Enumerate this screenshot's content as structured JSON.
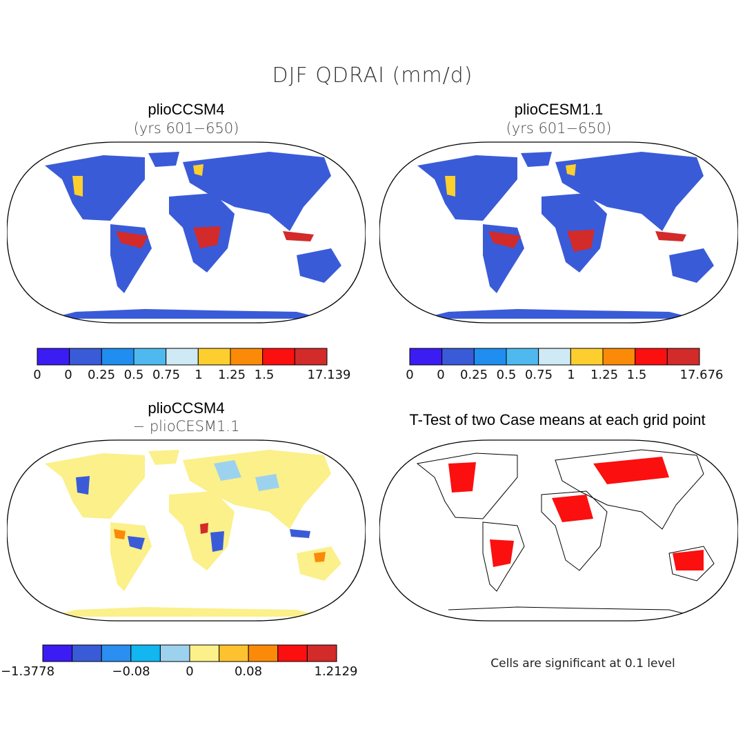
{
  "figure": {
    "title": "DJF QDRAI (mm/d)"
  },
  "panels": [
    {
      "id": "top-left",
      "title": "plioCCSM4",
      "subtitle": "(yrs 601−650)",
      "colorbar": {
        "colors": [
          "#3b1cf2",
          "#3a5bd8",
          "#1f8ef0",
          "#4fb9ef",
          "#cfe9f5",
          "#fdcf2e",
          "#fb8a08",
          "#fb0f0f",
          "#d32a2a"
        ],
        "labels": [
          "0",
          "0",
          "0.25",
          "0.5",
          "0.75",
          "1",
          "1.25",
          "1.5",
          "17.139"
        ]
      }
    },
    {
      "id": "top-right",
      "title": "plioCESM1.1",
      "subtitle": "(yrs 601−650)",
      "colorbar": {
        "colors": [
          "#3b1cf2",
          "#3a5bd8",
          "#1f8ef0",
          "#4fb9ef",
          "#cfe9f5",
          "#fdcf2e",
          "#fb8a08",
          "#fb0f0f",
          "#d32a2a"
        ],
        "labels": [
          "0",
          "0",
          "0.25",
          "0.5",
          "0.75",
          "1",
          "1.25",
          "1.5",
          "17.676"
        ]
      }
    },
    {
      "id": "bottom-left",
      "title": "plioCCSM4",
      "subtitle": "− plioCESM1.1",
      "colorbar": {
        "colors": [
          "#3b1cf2",
          "#3a5bd8",
          "#2a8ff0",
          "#12b6f0",
          "#9dd2ef",
          "#fbf08a",
          "#fdc22e",
          "#fb8a08",
          "#fb0f0f",
          "#d32a2a"
        ],
        "labels": [
          "−1.3778",
          "−0.08",
          "0",
          "0.08",
          "1.2129"
        ]
      }
    },
    {
      "id": "bottom-right",
      "title": "T-Test of two Case means at each grid point",
      "note": "Cells are significant at 0.1 level"
    }
  ]
}
